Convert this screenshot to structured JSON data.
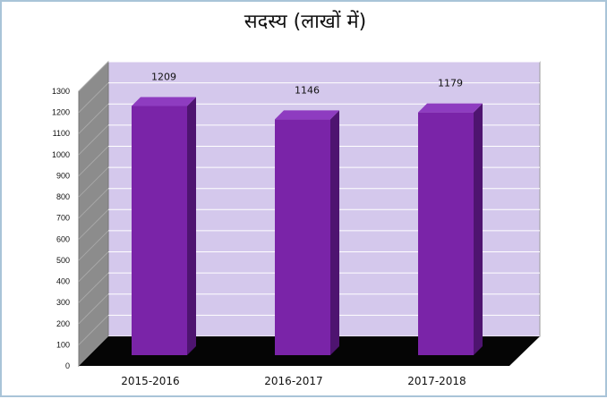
{
  "chart_data": {
    "type": "bar",
    "title": "सदस्य  (लाखों में)",
    "categories": [
      "2015-2016",
      "2016-2017",
      "2017-2018"
    ],
    "values": [
      1209,
      1146,
      1179
    ],
    "data_labels": [
      "1209",
      "1146",
      "1179"
    ],
    "xlabel": "",
    "ylabel": "",
    "ylim": [
      0,
      1300
    ],
    "yticks": [
      0,
      100,
      200,
      300,
      400,
      500,
      600,
      700,
      800,
      900,
      1000,
      1100,
      1200,
      1300
    ],
    "grid": true,
    "legend": "none",
    "style": "3d",
    "colors": {
      "bar": "#7a24a8",
      "bar_top": "#8e3cc0",
      "bar_side": "#4e1470",
      "back_wall": "#d4c8ec",
      "side_wall": "#8c8c8c",
      "floor": "#050505",
      "grid": "#ffffff"
    }
  }
}
